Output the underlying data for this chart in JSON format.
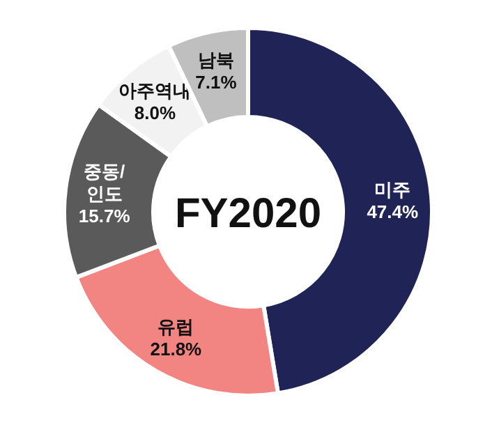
{
  "chart_data": {
    "type": "donut",
    "title": "FY2020",
    "categories": [
      "미주",
      "유럽",
      "중동/인도",
      "아주역내",
      "남북"
    ],
    "values": [
      47.4,
      21.8,
      15.7,
      8.0,
      7.1
    ],
    "colors": [
      "#1f2356",
      "#f28482",
      "#5a5a5a",
      "#f2f2f2",
      "#bfbfbf"
    ],
    "value_labels": [
      "47.4%",
      "21.8%",
      "15.7%",
      "8.0%",
      "7.1%"
    ]
  }
}
